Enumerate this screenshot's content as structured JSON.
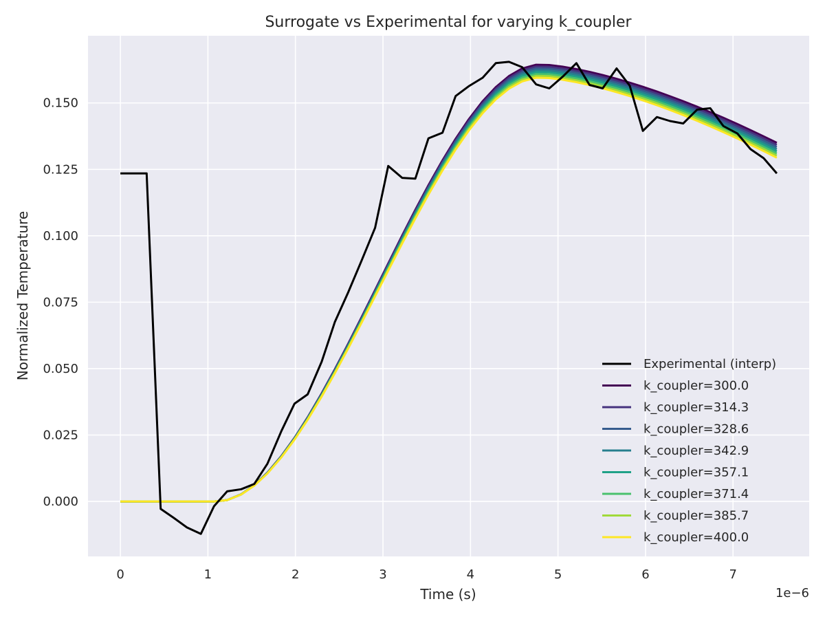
{
  "chart_data": {
    "type": "line",
    "title": "Surrogate vs Experimental for varying k_coupler",
    "xlabel": "Time (s)",
    "ylabel": "Normalized Temperature",
    "x_offset_label": "1e−6",
    "xlim": [
      -0.37,
      7.87
    ],
    "ylim": [
      -0.0207,
      0.1753
    ],
    "x_ticks": [
      0,
      1,
      2,
      3,
      4,
      5,
      6,
      7
    ],
    "x_tick_labels": [
      "0",
      "1",
      "2",
      "3",
      "4",
      "5",
      "6",
      "7"
    ],
    "y_ticks": [
      0.0,
      0.025,
      0.05,
      0.075,
      0.1,
      0.125,
      0.15
    ],
    "y_tick_labels": [
      "0.000",
      "0.025",
      "0.050",
      "0.075",
      "0.100",
      "0.125",
      "0.150"
    ],
    "grid": true,
    "legend_position": "lower right",
    "background_color": "#eaeaf2",
    "experimental": {
      "name": "Experimental (interp)",
      "color": "#000000",
      "x": [
        0,
        0.3,
        0.46,
        0.61,
        0.76,
        0.92,
        1.07,
        1.22,
        1.38,
        1.53,
        1.68,
        1.84,
        1.99,
        2.14,
        2.3,
        2.45,
        2.6,
        2.76,
        2.91,
        3.06,
        3.22,
        3.37,
        3.52,
        3.68,
        3.83,
        3.98,
        4.14,
        4.29,
        4.44,
        4.59,
        4.75,
        4.9,
        5.05,
        5.21,
        5.36,
        5.51,
        5.67,
        5.82,
        5.97,
        6.13,
        6.28,
        6.43,
        6.59,
        6.74,
        6.89,
        7.05,
        7.2,
        7.35,
        7.5
      ],
      "y": [
        0.1235,
        0.1235,
        -0.0028,
        -0.0062,
        -0.0098,
        -0.0122,
        -0.0018,
        0.0038,
        0.0046,
        0.0066,
        0.0142,
        0.0265,
        0.0368,
        0.0403,
        0.0526,
        0.0675,
        0.0785,
        0.091,
        0.103,
        0.1263,
        0.1218,
        0.1215,
        0.1367,
        0.1388,
        0.1526,
        0.1563,
        0.1595,
        0.165,
        0.1655,
        0.1635,
        0.157,
        0.1555,
        0.1598,
        0.165,
        0.1568,
        0.1555,
        0.163,
        0.1565,
        0.1395,
        0.1447,
        0.1432,
        0.1423,
        0.1475,
        0.148,
        0.1413,
        0.1385,
        0.1326,
        0.1292,
        0.1235
      ]
    },
    "series": [
      {
        "name": "k_coupler=300.0",
        "color": "#440154",
        "peak": 0.1645,
        "end": 0.135
      },
      {
        "name": "k_coupler=314.3",
        "color": "#46327e",
        "peak": 0.1638,
        "end": 0.1342
      },
      {
        "name": "k_coupler=328.6",
        "color": "#365c8d",
        "peak": 0.1631,
        "end": 0.1334
      },
      {
        "name": "k_coupler=342.9",
        "color": "#277f8e",
        "peak": 0.1624,
        "end": 0.1326
      },
      {
        "name": "k_coupler=357.1",
        "color": "#1fa187",
        "peak": 0.1617,
        "end": 0.1318
      },
      {
        "name": "k_coupler=371.4",
        "color": "#4ac16d",
        "peak": 0.161,
        "end": 0.131
      },
      {
        "name": "k_coupler=385.7",
        "color": "#a0da39",
        "peak": 0.1603,
        "end": 0.1302
      },
      {
        "name": "k_coupler=400.0",
        "color": "#fde725",
        "peak": 0.1596,
        "end": 0.1294
      }
    ]
  }
}
